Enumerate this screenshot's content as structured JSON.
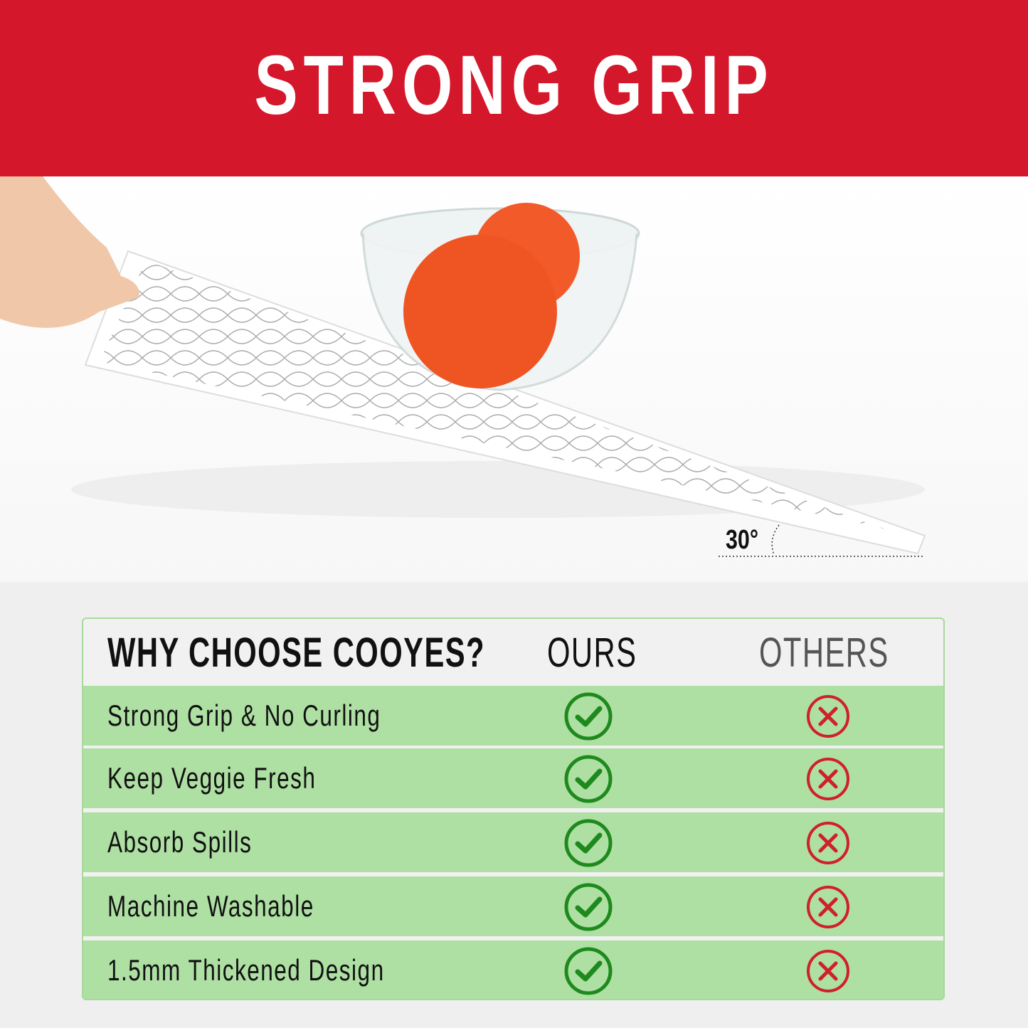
{
  "banner": {
    "title": "STRONG GRIP"
  },
  "photo": {
    "angle_label": "30°"
  },
  "comparison": {
    "heading": "WHY CHOOSE COOYES?",
    "col_ours": "OURS",
    "col_others": "OTHERS",
    "colors": {
      "row_bg": "#aedfa3",
      "check": "#1e8a1e",
      "cross": "#d0202a",
      "banner": "#d4172b"
    },
    "rows": [
      {
        "label": "Strong Grip & No Curling",
        "ours": "check-icon",
        "others": "cross-icon"
      },
      {
        "label": "Keep Veggie Fresh",
        "ours": "check-icon",
        "others": "cross-icon"
      },
      {
        "label": "Absorb Spills",
        "ours": "check-icon",
        "others": "cross-icon"
      },
      {
        "label": "Machine Washable",
        "ours": "check-icon",
        "others": "cross-icon"
      },
      {
        "label": "1.5mm Thickened Design",
        "ours": "check-icon",
        "others": "cross-icon"
      }
    ]
  }
}
